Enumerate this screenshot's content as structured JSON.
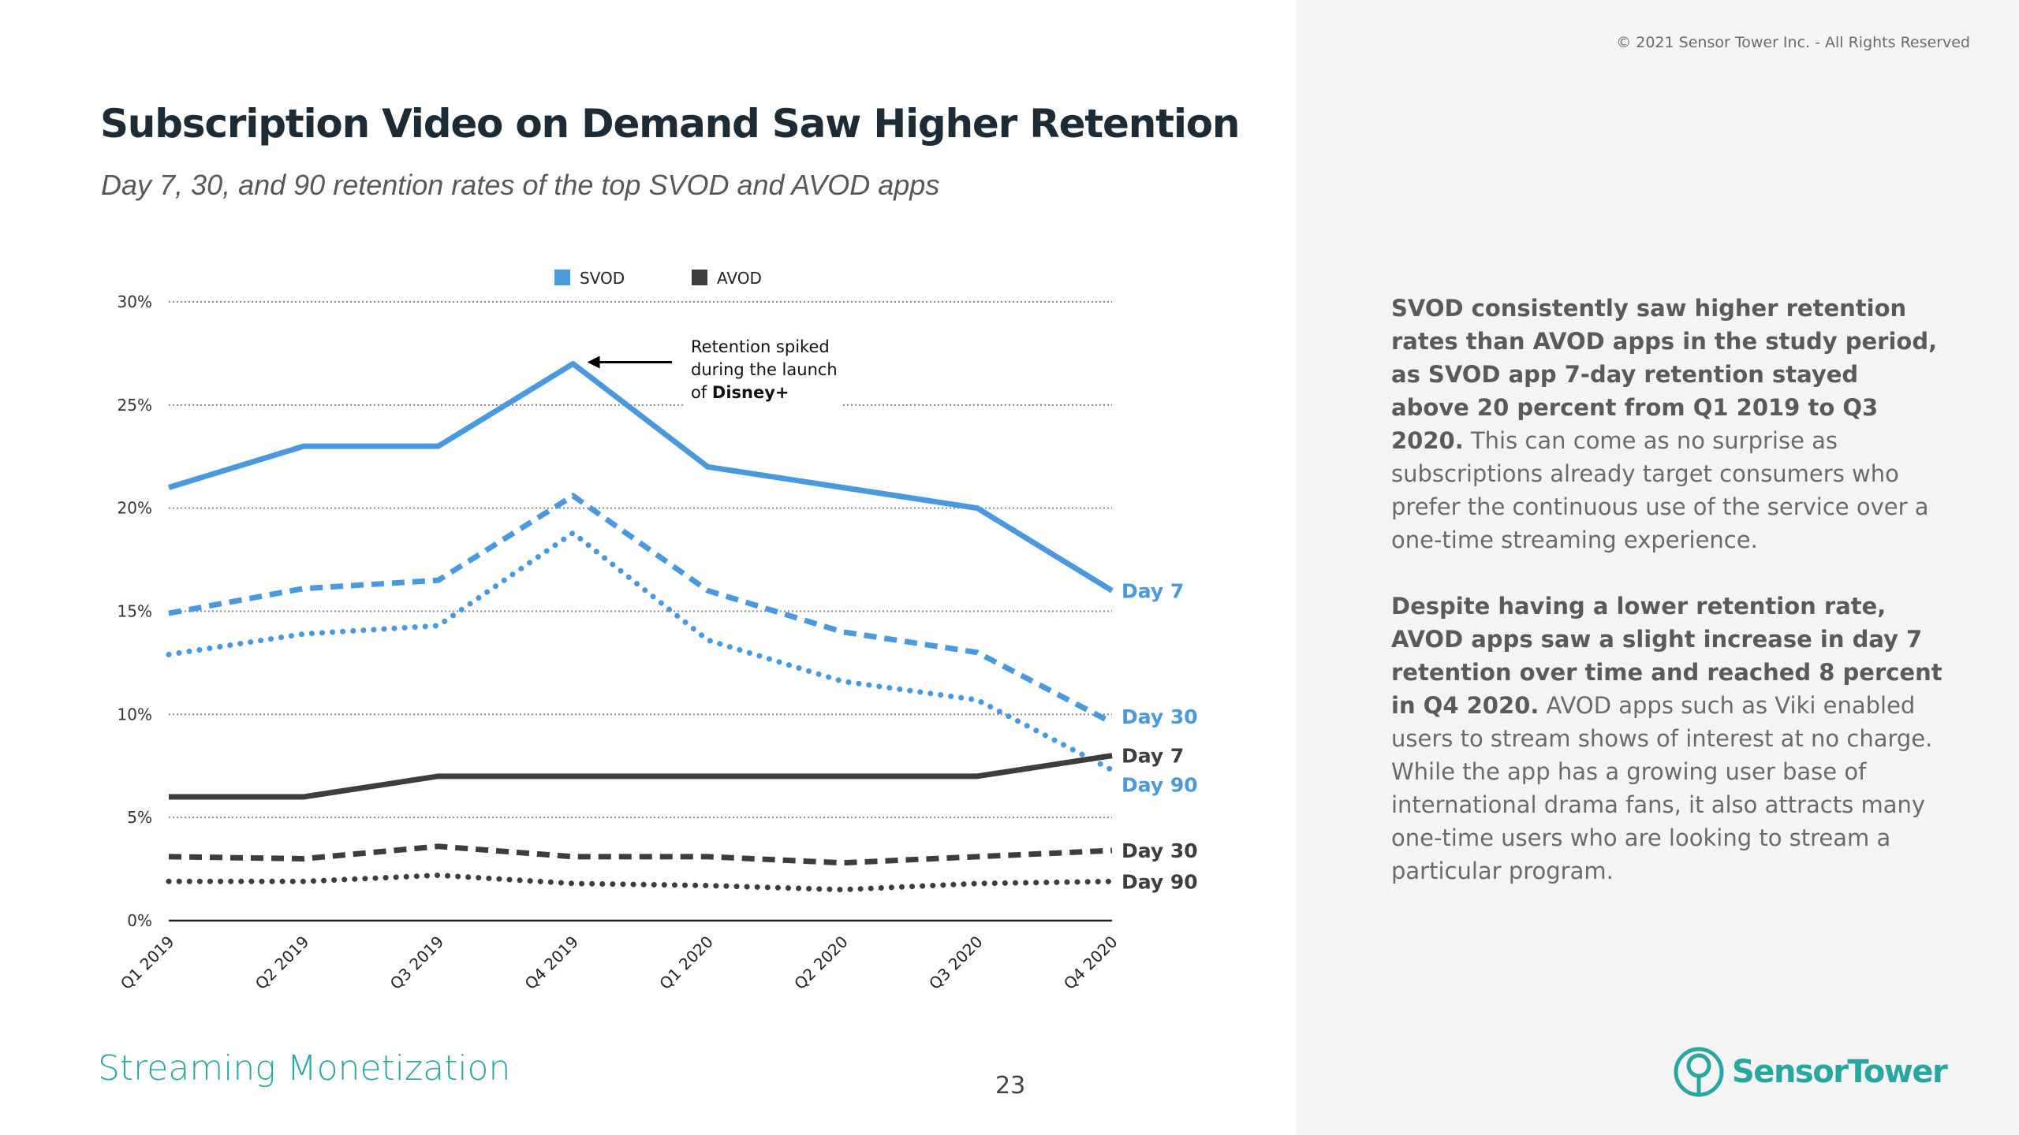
{
  "header": {
    "title": "Subscription Video on Demand Saw Higher Retention",
    "subtitle": "Day 7, 30, and 90 retention rates of the top SVOD and AVOD apps",
    "copyright": "© 2021 Sensor Tower Inc. - All Rights Reserved"
  },
  "footer": {
    "section": "Streaming Monetization",
    "page_number": "23",
    "brand": "SensorTower"
  },
  "commentary": {
    "p1_bold": "SVOD consistently saw higher retention rates than AVOD apps in the study period, as SVOD app 7-day retention stayed above 20 percent from Q1 2019 to Q3 2020.",
    "p1_rest": " This can come as no surprise as subscriptions already target consumers who prefer the continuous use of the service over a one-time streaming experience.",
    "p2_bold": "Despite having a lower retention rate, AVOD apps saw a slight increase in day 7 retention over time and reached 8 percent in Q4 2020.",
    "p2_rest": " AVOD apps such as Viki enabled users to stream shows of interest at no charge. While the app has a growing user base of international drama fans, it also attracts many one-time users who are looking to stream a particular program."
  },
  "chart_data": {
    "type": "line",
    "x": [
      "Q1 2019",
      "Q2 2019",
      "Q3 2019",
      "Q4 2019",
      "Q1 2020",
      "Q2 2020",
      "Q3 2020",
      "Q4 2020"
    ],
    "ylim": [
      0,
      30
    ],
    "yticks": [
      0,
      5,
      10,
      15,
      20,
      25,
      30
    ],
    "ytick_labels": [
      "0%",
      "5%",
      "10%",
      "15%",
      "20%",
      "25%",
      "30%"
    ],
    "grid": true,
    "legend": [
      {
        "name": "SVOD",
        "color": "#4a98dd"
      },
      {
        "name": "AVOD",
        "color": "#3d3d3d"
      }
    ],
    "legend_position": "top-center",
    "series": [
      {
        "group": "SVOD",
        "name": "Day 7",
        "dash": "solid",
        "color": "#4a98dd",
        "values": [
          21,
          23,
          23,
          27,
          22,
          21,
          20,
          16
        ]
      },
      {
        "group": "SVOD",
        "name": "Day 30",
        "dash": "dashed",
        "color": "#4a98dd",
        "values": [
          14.9,
          16.1,
          16.5,
          20.6,
          16,
          14,
          13,
          9.6
        ]
      },
      {
        "group": "SVOD",
        "name": "Day 90",
        "dash": "dotted",
        "color": "#4a98dd",
        "values": [
          12.9,
          13.9,
          14.3,
          18.8,
          13.6,
          11.6,
          10.7,
          7.3
        ]
      },
      {
        "group": "AVOD",
        "name": "Day 7",
        "dash": "solid",
        "color": "#3d3d3d",
        "values": [
          6,
          6,
          7,
          7,
          7,
          7,
          7,
          8
        ]
      },
      {
        "group": "AVOD",
        "name": "Day 30",
        "dash": "dashed",
        "color": "#3d3d3d",
        "values": [
          3.1,
          3.0,
          3.6,
          3.1,
          3.1,
          2.8,
          3.1,
          3.4
        ]
      },
      {
        "group": "AVOD",
        "name": "Day 90",
        "dash": "dotted",
        "color": "#3d3d3d",
        "values": [
          1.9,
          1.9,
          2.2,
          1.8,
          1.7,
          1.5,
          1.8,
          1.9
        ]
      }
    ],
    "end_labels": [
      {
        "text": "Day 7",
        "color": "#4a98dd",
        "value": 16
      },
      {
        "text": "Day 30",
        "color": "#4a98dd",
        "value": 9.9
      },
      {
        "text": "Day 7",
        "color": "#3d3d3d",
        "value": 8
      },
      {
        "text": "Day 90",
        "color": "#4a98dd",
        "value": 6.6
      },
      {
        "text": "Day 30",
        "color": "#3d3d3d",
        "value": 3.4
      },
      {
        "text": "Day 90",
        "color": "#3d3d3d",
        "value": 1.9
      }
    ],
    "annotation": {
      "lines": [
        "Retention spiked",
        "during the launch",
        "of "
      ],
      "bold": "Disney+",
      "point_category": "Q4 2019",
      "point_value": 27
    }
  }
}
